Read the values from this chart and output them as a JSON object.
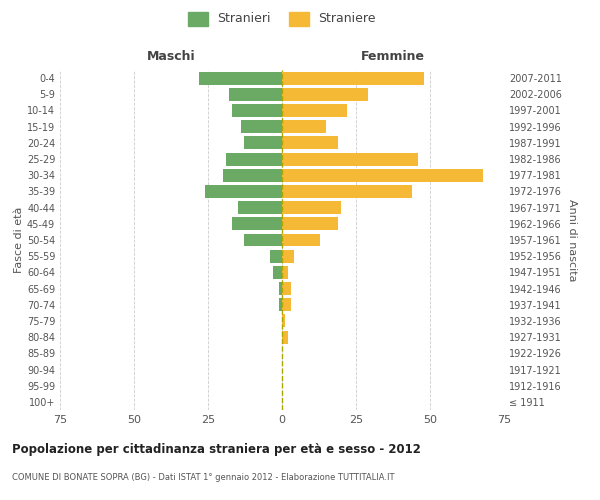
{
  "age_groups": [
    "100+",
    "95-99",
    "90-94",
    "85-89",
    "80-84",
    "75-79",
    "70-74",
    "65-69",
    "60-64",
    "55-59",
    "50-54",
    "45-49",
    "40-44",
    "35-39",
    "30-34",
    "25-29",
    "20-24",
    "15-19",
    "10-14",
    "5-9",
    "0-4"
  ],
  "birth_years": [
    "≤ 1911",
    "1912-1916",
    "1917-1921",
    "1922-1926",
    "1927-1931",
    "1932-1936",
    "1937-1941",
    "1942-1946",
    "1947-1951",
    "1952-1956",
    "1957-1961",
    "1962-1966",
    "1967-1971",
    "1972-1976",
    "1977-1981",
    "1982-1986",
    "1987-1991",
    "1992-1996",
    "1997-2001",
    "2002-2006",
    "2007-2011"
  ],
  "males": [
    0,
    0,
    0,
    0,
    0,
    0,
    1,
    1,
    3,
    4,
    13,
    17,
    15,
    26,
    20,
    19,
    13,
    14,
    17,
    18,
    28
  ],
  "females": [
    0,
    0,
    0,
    0,
    2,
    1,
    3,
    3,
    2,
    4,
    13,
    19,
    20,
    44,
    68,
    46,
    19,
    15,
    22,
    29,
    48
  ],
  "male_color": "#6aaa64",
  "female_color": "#f5b935",
  "male_label": "Stranieri",
  "female_label": "Straniere",
  "title": "Popolazione per cittadinanza straniera per età e sesso - 2012",
  "subtitle": "COMUNE DI BONATE SOPRA (BG) - Dati ISTAT 1° gennaio 2012 - Elaborazione TUTTITALIA.IT",
  "xlabel_left": "Maschi",
  "xlabel_right": "Femmine",
  "ylabel_left": "Fasce di età",
  "ylabel_right": "Anni di nascita",
  "xlim": 75,
  "background_color": "#ffffff",
  "grid_color": "#cccccc",
  "bar_height": 0.8,
  "text_color": "#555555",
  "title_color": "#222222"
}
